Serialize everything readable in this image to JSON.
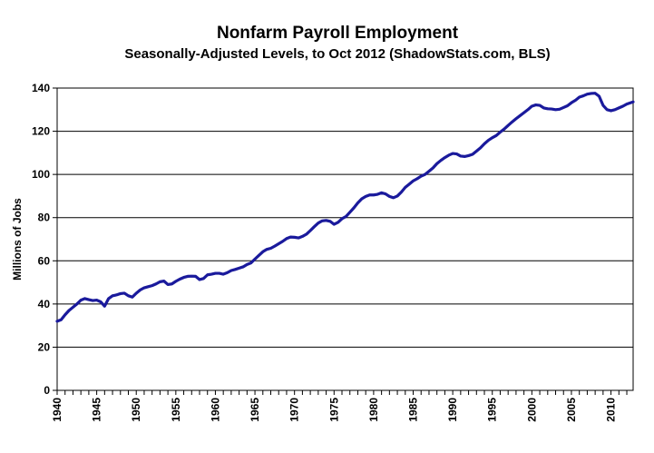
{
  "chart_data": {
    "type": "line",
    "title": "Nonfarm Payroll Employment",
    "subtitle": "Seasonally-Adjusted Levels, to Oct 2012 (ShadowStats.com, BLS)",
    "xlabel": "",
    "ylabel": "Millions of Jobs",
    "xlim": [
      1940,
      2012.8
    ],
    "ylim": [
      0,
      140
    ],
    "y_ticks": [
      0,
      20,
      40,
      60,
      80,
      100,
      120,
      140
    ],
    "x_ticks": [
      1940,
      1945,
      1950,
      1955,
      1960,
      1965,
      1970,
      1975,
      1980,
      1985,
      1990,
      1995,
      2000,
      2005,
      2010
    ],
    "x_tick_labels": [
      "1940",
      "1945",
      "1950",
      "1955",
      "1960",
      "1965",
      "1970",
      "1975",
      "1980",
      "1985",
      "1990",
      "1995",
      "2000",
      "2005",
      "2010"
    ],
    "grid": "horizontal",
    "legend": "none",
    "line_color": "#1a1a9c",
    "series": [
      {
        "x": [
          1940,
          1940.5,
          1941,
          1941.5,
          1942,
          1942.5,
          1943,
          1943.5,
          1944,
          1944.5,
          1945,
          1945.5,
          1946,
          1946.5,
          1947,
          1947.5,
          1948,
          1948.5,
          1949,
          1949.5,
          1950,
          1950.5,
          1951,
          1951.5,
          1952,
          1952.5,
          1953,
          1953.5,
          1954,
          1954.5,
          1955,
          1955.5,
          1956,
          1956.5,
          1957,
          1957.5,
          1958,
          1958.5,
          1959,
          1959.5,
          1960,
          1960.5,
          1961,
          1961.5,
          1962,
          1962.5,
          1963,
          1963.5,
          1964,
          1964.5,
          1965,
          1965.5,
          1966,
          1966.5,
          1967,
          1967.5,
          1968,
          1968.5,
          1969,
          1969.5,
          1970,
          1970.5,
          1971,
          1971.5,
          1972,
          1972.5,
          1973,
          1973.5,
          1974,
          1974.5,
          1975,
          1975.5,
          1976,
          1976.5,
          1977,
          1977.5,
          1978,
          1978.5,
          1979,
          1979.5,
          1980,
          1980.5,
          1981,
          1981.5,
          1982,
          1982.5,
          1983,
          1983.5,
          1984,
          1984.5,
          1985,
          1985.5,
          1986,
          1986.5,
          1987,
          1987.5,
          1988,
          1988.5,
          1989,
          1989.5,
          1990,
          1990.5,
          1991,
          1991.5,
          1992,
          1992.5,
          1993,
          1993.5,
          1994,
          1994.5,
          1995,
          1995.5,
          1996,
          1996.5,
          1997,
          1997.5,
          1998,
          1998.5,
          1999,
          1999.5,
          2000,
          2000.5,
          2001,
          2001.5,
          2002,
          2002.5,
          2003,
          2003.5,
          2004,
          2004.5,
          2005,
          2005.5,
          2006,
          2006.5,
          2007,
          2007.5,
          2008,
          2008.5,
          2009,
          2009.5,
          2010,
          2010.5,
          2011,
          2011.5,
          2012,
          2012.8
        ],
        "y": [
          32.0,
          32.7,
          35.0,
          37.0,
          38.5,
          40.0,
          41.8,
          42.5,
          42.0,
          41.6,
          41.8,
          41.0,
          39.0,
          42.5,
          43.8,
          44.2,
          44.8,
          45.0,
          43.8,
          43.2,
          45.0,
          46.5,
          47.5,
          48.0,
          48.5,
          49.3,
          50.3,
          50.6,
          49.0,
          49.3,
          50.5,
          51.5,
          52.3,
          52.8,
          52.9,
          52.8,
          51.3,
          51.8,
          53.5,
          53.8,
          54.2,
          54.2,
          53.8,
          54.5,
          55.5,
          56.0,
          56.6,
          57.2,
          58.3,
          59.0,
          60.8,
          62.5,
          64.2,
          65.3,
          65.8,
          66.8,
          67.9,
          69.0,
          70.3,
          71.0,
          70.9,
          70.6,
          71.3,
          72.3,
          74.0,
          75.8,
          77.5,
          78.5,
          78.7,
          78.3,
          76.9,
          77.8,
          79.5,
          80.5,
          82.5,
          84.5,
          86.8,
          88.7,
          89.8,
          90.5,
          90.5,
          90.8,
          91.5,
          91.0,
          89.8,
          89.2,
          90.0,
          91.8,
          94.0,
          95.5,
          97.0,
          98.0,
          99.2,
          100.0,
          101.5,
          103.0,
          105.0,
          106.5,
          107.8,
          108.9,
          109.7,
          109.5,
          108.5,
          108.3,
          108.7,
          109.3,
          110.8,
          112.3,
          114.2,
          115.8,
          117.0,
          118.0,
          119.6,
          121.0,
          122.7,
          124.3,
          125.8,
          127.2,
          128.6,
          130.0,
          131.6,
          132.2,
          132.0,
          130.8,
          130.4,
          130.3,
          130.0,
          130.2,
          131.0,
          131.8,
          133.2,
          134.3,
          135.8,
          136.4,
          137.2,
          137.5,
          137.6,
          136.2,
          132.0,
          130.0,
          129.5,
          130.0,
          130.8,
          131.6,
          132.6,
          133.6
        ]
      }
    ]
  }
}
